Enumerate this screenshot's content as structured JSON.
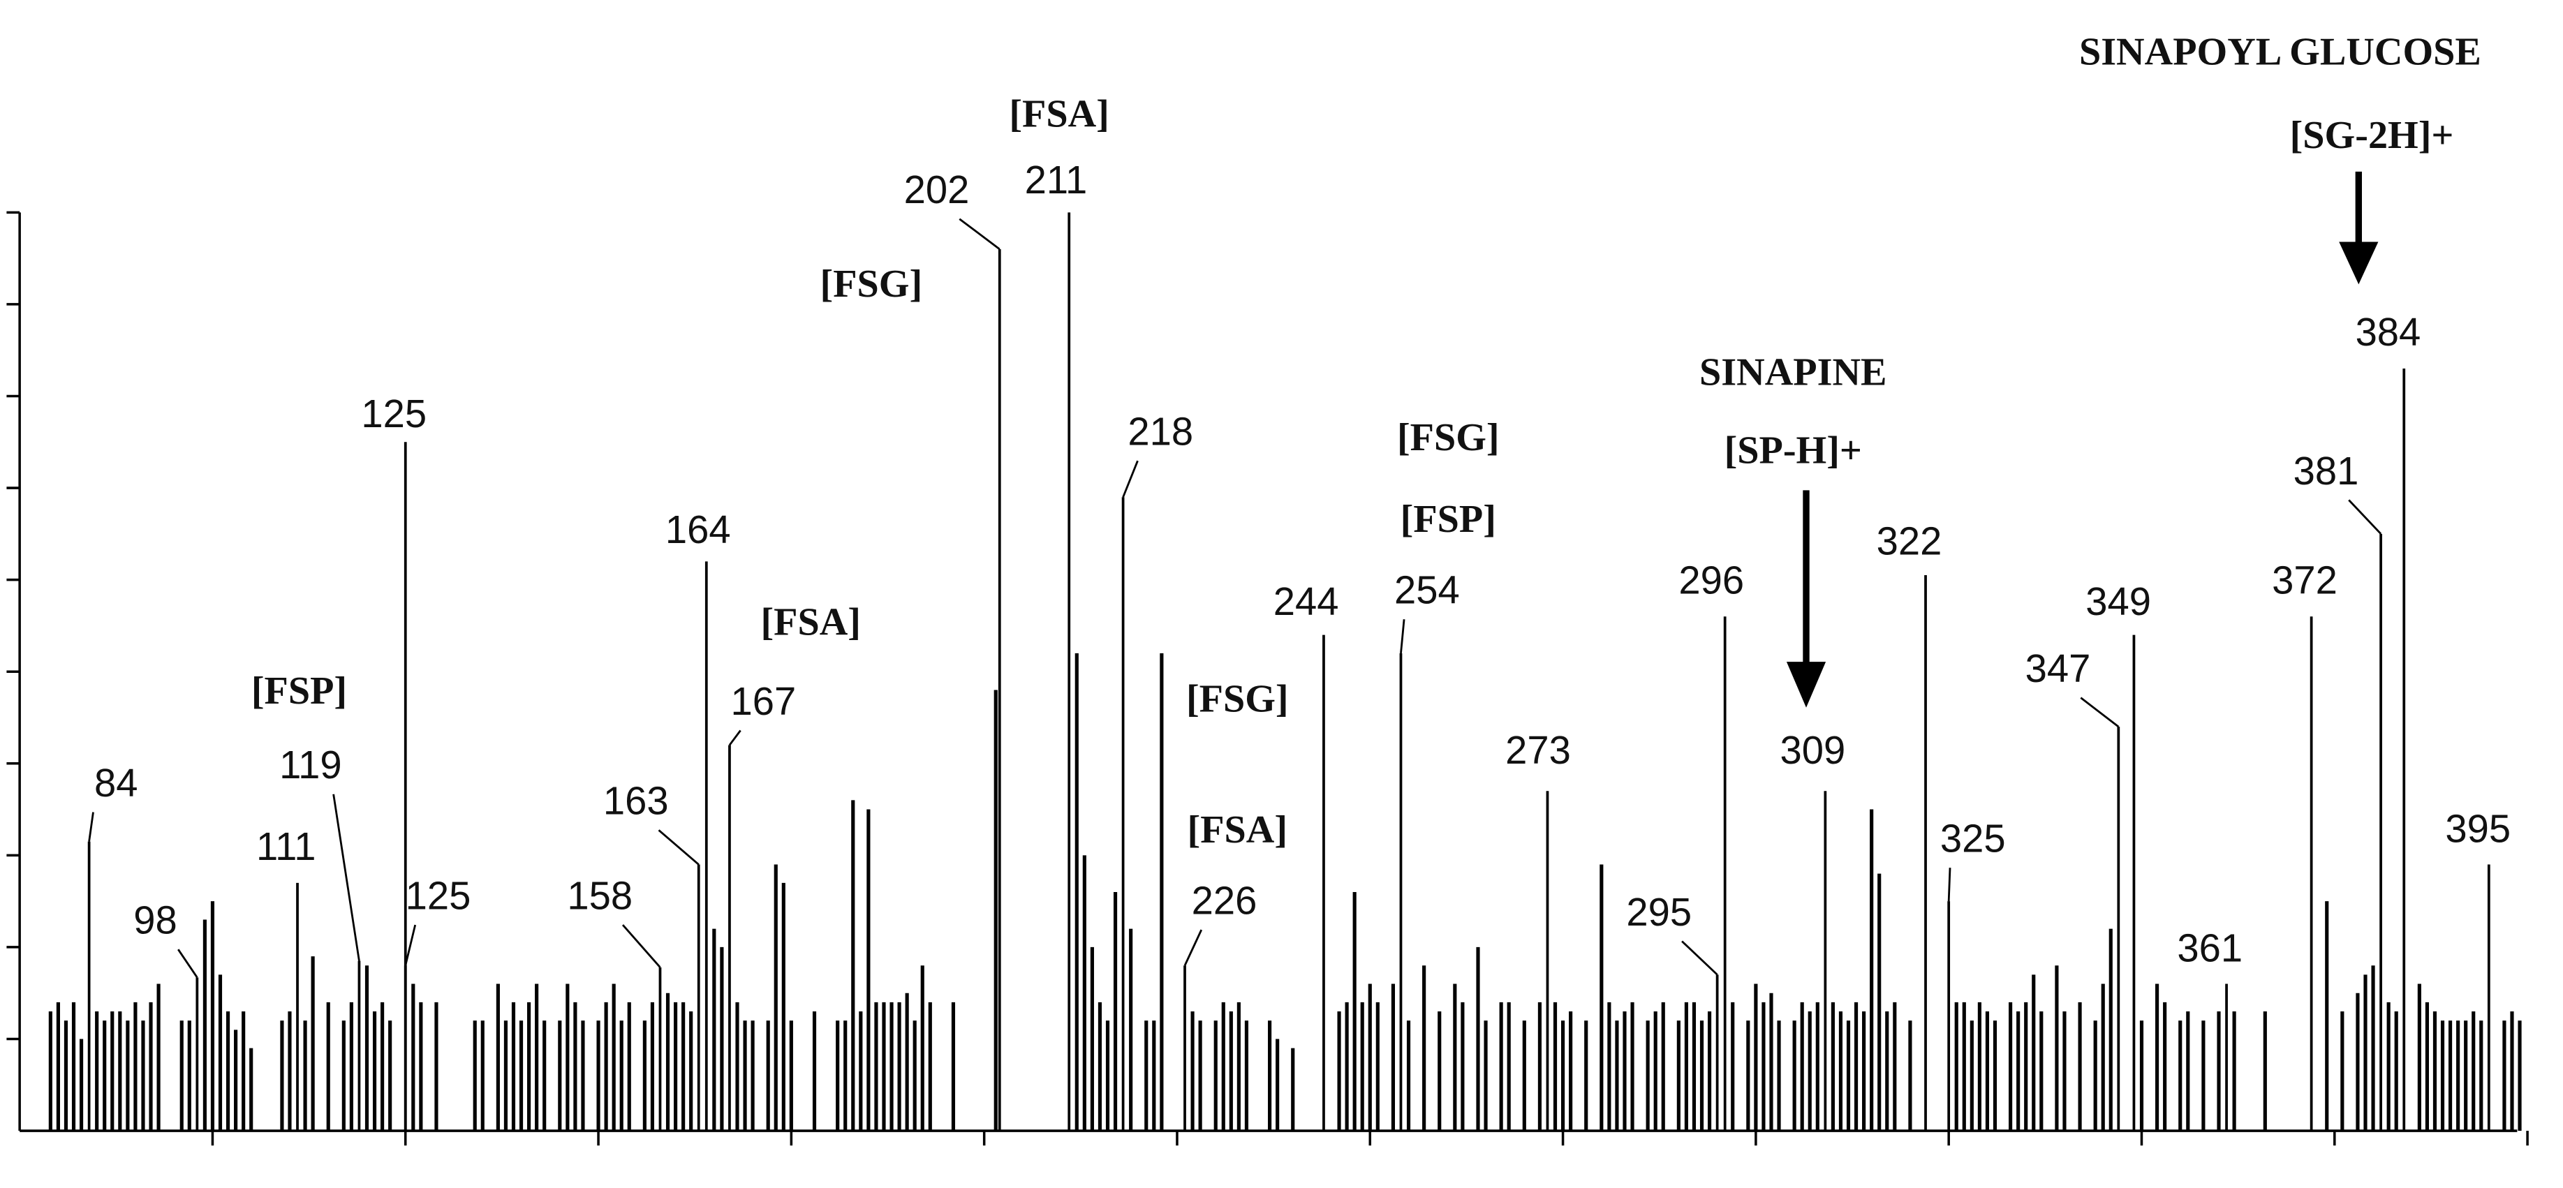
{
  "chart_data": {
    "type": "bar",
    "xlim": [
      75,
      401
    ],
    "xticks": [
      100,
      125,
      150,
      175,
      200,
      225,
      250,
      275,
      300,
      325,
      350,
      375,
      400
    ],
    "ylim": [
      0,
      100
    ],
    "yticks": [
      10,
      20,
      30,
      40,
      50,
      60,
      70,
      80,
      90,
      100
    ],
    "series": [
      {
        "color": "#000000",
        "x": [
          84,
          98,
          111,
          119,
          125,
          125,
          158,
          163,
          164,
          167,
          202,
          211,
          218,
          226,
          244,
          254,
          273,
          295,
          296,
          309,
          322,
          325,
          347,
          349,
          361,
          372,
          381,
          384,
          395
        ],
        "values": [
          31.5,
          16.7,
          27,
          18.5,
          75,
          18,
          17.8,
          29,
          62,
          42,
          96,
          100,
          69,
          18,
          54,
          52,
          37,
          17,
          56,
          37,
          60.5,
          25,
          44,
          54,
          16,
          56,
          65,
          83,
          29
        ]
      },
      {
        "color": "#000000",
        "x": [
          79,
          80,
          81,
          82,
          83,
          85,
          86,
          87,
          88,
          89,
          90,
          91,
          92,
          93,
          96,
          97,
          99,
          100,
          101,
          102,
          103,
          104,
          105,
          109,
          110,
          112,
          113,
          115,
          117,
          118,
          120,
          121,
          122,
          123,
          126,
          127,
          129,
          134,
          135,
          137,
          138,
          139,
          140,
          141,
          142,
          143,
          145,
          146,
          147,
          148,
          150,
          151,
          152,
          153,
          154,
          156,
          157,
          159,
          160,
          161,
          162,
          165,
          166,
          168,
          169,
          170,
          172,
          173,
          174,
          175,
          178,
          181,
          182,
          183,
          184,
          185,
          186,
          187,
          188,
          189,
          190,
          191,
          192,
          193,
          196,
          201.5,
          212,
          213,
          214,
          215,
          216,
          217,
          219,
          221,
          222,
          223,
          227,
          228,
          230,
          231,
          232,
          233,
          234,
          237,
          238,
          240,
          246,
          247,
          248,
          249,
          250,
          251,
          253,
          255,
          257,
          259,
          261,
          262,
          264,
          265,
          267,
          268,
          270,
          272,
          274,
          275,
          276,
          278,
          280,
          281,
          282,
          283,
          284,
          286,
          287,
          288,
          290,
          291,
          292,
          293,
          294,
          297,
          299,
          300,
          301,
          302,
          303,
          305,
          306,
          307,
          308,
          310,
          311,
          312,
          313,
          314,
          315,
          316,
          317,
          318,
          320,
          326,
          327,
          328,
          329,
          330,
          331,
          333,
          334,
          335,
          336,
          337,
          339,
          340,
          342,
          344,
          345,
          346,
          350,
          352,
          353,
          355,
          356,
          358,
          360,
          362,
          366,
          374,
          376,
          378,
          379,
          380,
          382,
          383,
          386,
          387,
          388,
          389,
          390,
          391,
          392,
          393,
          394,
          397,
          398,
          399
        ],
        "values": [
          13,
          14,
          12,
          14,
          10,
          13,
          12,
          13,
          13,
          12,
          14,
          12,
          14,
          16,
          12,
          12,
          23,
          25,
          17,
          13,
          11,
          13,
          9,
          12,
          13,
          12,
          19,
          14,
          12,
          14,
          18,
          13,
          14,
          12,
          16,
          14,
          14,
          12,
          12,
          16,
          12,
          14,
          12,
          14,
          16,
          12,
          12,
          16,
          14,
          12,
          12,
          14,
          16,
          12,
          14,
          12,
          14,
          15,
          14,
          14,
          13,
          22,
          20,
          14,
          12,
          12,
          12,
          29,
          27,
          12,
          13,
          12,
          12,
          36,
          13,
          35,
          14,
          14,
          14,
          14,
          15,
          12,
          18,
          14,
          14,
          48,
          52,
          30,
          20,
          14,
          12,
          26,
          22,
          12,
          12,
          52,
          13,
          12,
          12,
          14,
          13,
          14,
          12,
          12,
          10,
          9,
          13,
          14,
          26,
          14,
          16,
          14,
          16,
          12,
          18,
          13,
          16,
          14,
          20,
          12,
          14,
          14,
          12,
          14,
          14,
          12,
          13,
          12,
          29,
          14,
          12,
          13,
          14,
          12,
          13,
          14,
          12,
          14,
          14,
          12,
          13,
          14,
          12,
          16,
          14,
          15,
          12,
          12,
          14,
          13,
          14,
          14,
          13,
          12,
          14,
          13,
          35,
          28,
          13,
          14,
          12,
          14,
          14,
          12,
          14,
          13,
          12,
          14,
          13,
          14,
          17,
          13,
          18,
          13,
          14,
          12,
          16,
          22,
          12,
          16,
          14,
          12,
          13,
          12,
          13,
          13,
          13,
          25,
          13,
          15,
          17,
          18,
          14,
          13,
          16,
          14,
          13,
          12,
          12,
          12,
          12,
          13,
          12,
          12,
          13,
          12
        ]
      }
    ],
    "annotations": [
      "[FSP]",
      "[FSA]",
      "[FSG]",
      "[FSA]",
      "[FSG]",
      "[FSA]",
      "[FSG]",
      "[FSP]",
      "SINAPINE",
      "[SP-H]+",
      "SINAPOYL GLUCOSE",
      "[SG-2H]+"
    ]
  }
}
